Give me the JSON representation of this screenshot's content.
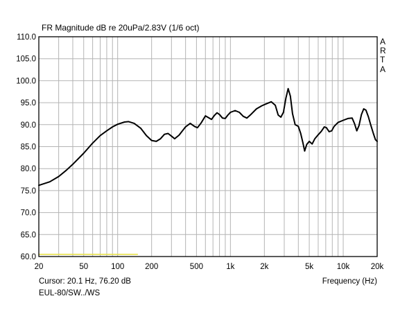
{
  "chart_data": {
    "type": "line",
    "title": "FR Magnitude dB re 20uPa/2.83V (1/6 oct)",
    "xlabel": "Frequency (Hz)",
    "ylabel": "",
    "x_scale": "log",
    "xlim": [
      20,
      20000
    ],
    "ylim": [
      60,
      110
    ],
    "grid": true,
    "x_ticks": [
      {
        "value": 20,
        "label": "20"
      },
      {
        "value": 50,
        "label": "50"
      },
      {
        "value": 100,
        "label": "100"
      },
      {
        "value": 200,
        "label": "200"
      },
      {
        "value": 500,
        "label": "500"
      },
      {
        "value": 1000,
        "label": "1k"
      },
      {
        "value": 2000,
        "label": "2k"
      },
      {
        "value": 5000,
        "label": "5k"
      },
      {
        "value": 10000,
        "label": "10k"
      },
      {
        "value": 20000,
        "label": "20k"
      }
    ],
    "y_ticks": [
      "60.0",
      "65.0",
      "70.0",
      "75.0",
      "80.0",
      "85.0",
      "90.0",
      "95.0",
      "100.0",
      "105.0",
      "110.0"
    ],
    "series": [
      {
        "color": "#000000",
        "points": [
          [
            20,
            76.2
          ],
          [
            25,
            77.0
          ],
          [
            30,
            78.2
          ],
          [
            35,
            79.6
          ],
          [
            40,
            81.0
          ],
          [
            50,
            83.5
          ],
          [
            60,
            85.8
          ],
          [
            70,
            87.5
          ],
          [
            80,
            88.6
          ],
          [
            90,
            89.5
          ],
          [
            100,
            90.1
          ],
          [
            115,
            90.6
          ],
          [
            125,
            90.7
          ],
          [
            140,
            90.3
          ],
          [
            160,
            89.2
          ],
          [
            180,
            87.5
          ],
          [
            200,
            86.4
          ],
          [
            220,
            86.2
          ],
          [
            240,
            86.8
          ],
          [
            260,
            87.8
          ],
          [
            280,
            88.0
          ],
          [
            300,
            87.4
          ],
          [
            320,
            86.8
          ],
          [
            350,
            87.6
          ],
          [
            400,
            89.5
          ],
          [
            440,
            90.3
          ],
          [
            480,
            89.6
          ],
          [
            510,
            89.3
          ],
          [
            550,
            90.4
          ],
          [
            600,
            92.0
          ],
          [
            640,
            91.6
          ],
          [
            680,
            91.2
          ],
          [
            720,
            92.1
          ],
          [
            760,
            92.7
          ],
          [
            800,
            92.3
          ],
          [
            850,
            91.5
          ],
          [
            900,
            91.4
          ],
          [
            950,
            92.2
          ],
          [
            1000,
            92.8
          ],
          [
            1100,
            93.2
          ],
          [
            1200,
            92.8
          ],
          [
            1300,
            91.9
          ],
          [
            1400,
            91.5
          ],
          [
            1500,
            92.2
          ],
          [
            1700,
            93.6
          ],
          [
            1900,
            94.3
          ],
          [
            2100,
            94.8
          ],
          [
            2300,
            95.2
          ],
          [
            2500,
            94.4
          ],
          [
            2650,
            92.2
          ],
          [
            2800,
            91.7
          ],
          [
            2950,
            92.8
          ],
          [
            3100,
            96.0
          ],
          [
            3250,
            98.2
          ],
          [
            3400,
            96.5
          ],
          [
            3550,
            92.5
          ],
          [
            3750,
            90.0
          ],
          [
            4000,
            89.6
          ],
          [
            4200,
            88.0
          ],
          [
            4400,
            85.8
          ],
          [
            4550,
            84.0
          ],
          [
            4750,
            85.5
          ],
          [
            5000,
            86.2
          ],
          [
            5300,
            85.6
          ],
          [
            5600,
            86.8
          ],
          [
            6000,
            87.7
          ],
          [
            6400,
            88.5
          ],
          [
            6800,
            89.5
          ],
          [
            7100,
            89.3
          ],
          [
            7500,
            88.4
          ],
          [
            7900,
            88.6
          ],
          [
            8300,
            89.6
          ],
          [
            9000,
            90.5
          ],
          [
            10000,
            91.0
          ],
          [
            11000,
            91.4
          ],
          [
            12000,
            91.5
          ],
          [
            12600,
            90.2
          ],
          [
            13200,
            88.6
          ],
          [
            13800,
            89.8
          ],
          [
            14500,
            92.3
          ],
          [
            15200,
            93.6
          ],
          [
            15900,
            93.3
          ],
          [
            16700,
            91.8
          ],
          [
            17500,
            90.0
          ],
          [
            18500,
            88.0
          ],
          [
            19300,
            86.6
          ],
          [
            20000,
            86.2
          ]
        ]
      },
      {
        "color": "#e6e04a",
        "points": [
          [
            20,
            60.5
          ],
          [
            150,
            60.5
          ]
        ]
      }
    ]
  },
  "side_label": [
    "A",
    "R",
    "T",
    "A"
  ],
  "footer": {
    "cursor": "Cursor: 20.1 Hz, 76.20 dB",
    "name": "EUL-80/SW../WS"
  }
}
